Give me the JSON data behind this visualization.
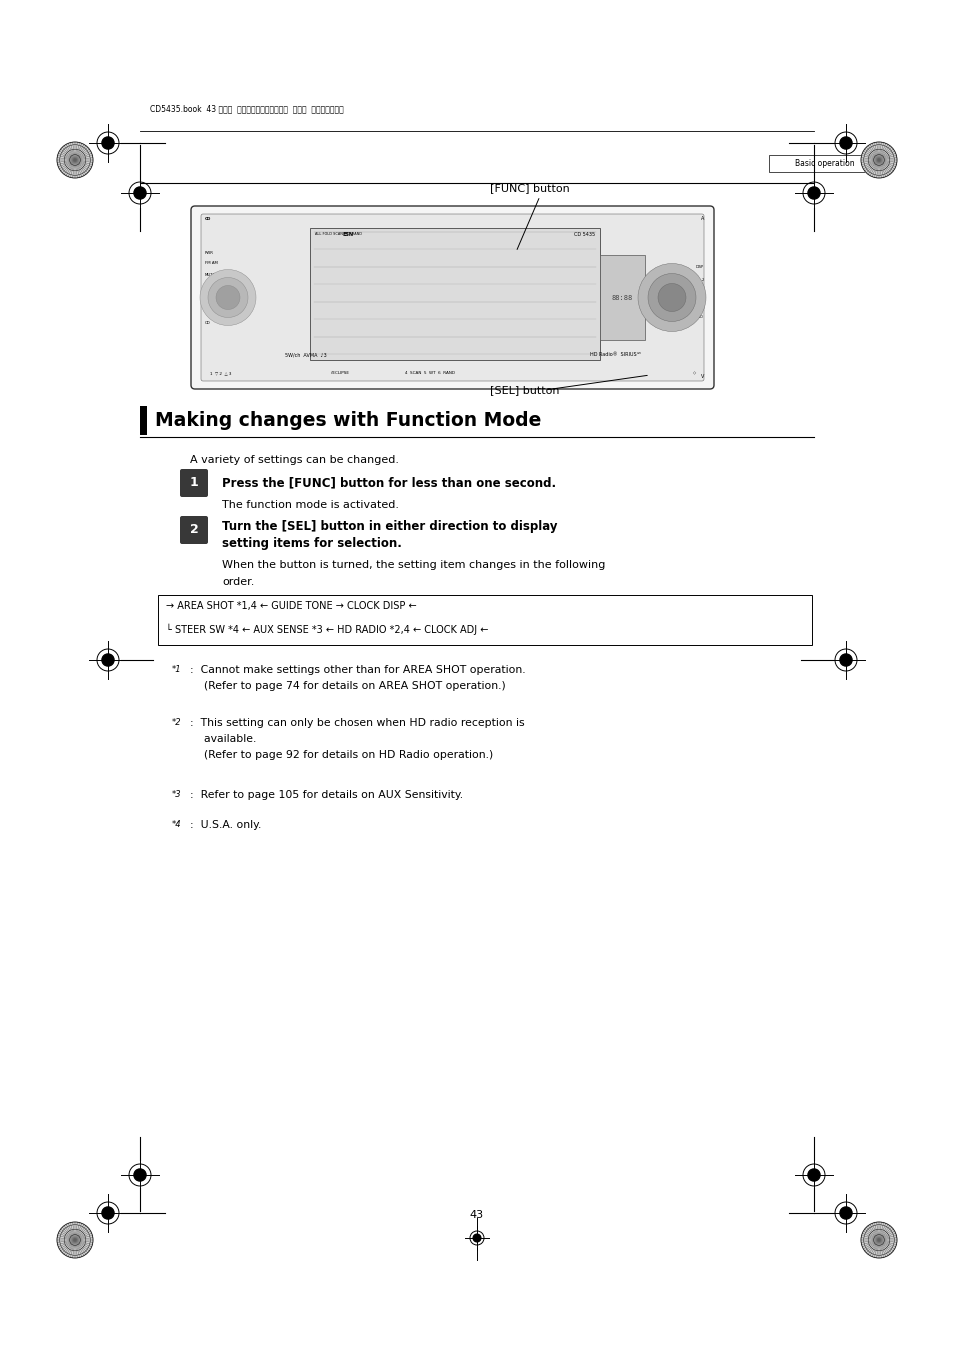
{
  "page_bg": "#ffffff",
  "page_width": 9.54,
  "page_height": 13.51,
  "dpi": 100,
  "header_text": "CD5435.book  43 ページ  ２００４年１２月１１日  土曜日  午後５時２９分",
  "tab_label": "Basic operation",
  "func_button_label": "[FUNC] button",
  "sel_button_label": "[SEL] button",
  "section_title": "Making changes with Function Mode",
  "intro_text": "A variety of settings can be changed.",
  "step1_bold": "Press the [FUNC] button for less than one second.",
  "step1_note": "The function mode is activated.",
  "step2_bold_line1": "Turn the [SEL] button in either direction to display",
  "step2_bold_line2": "setting items for selection.",
  "step2_note_line1": "When the button is turned, the setting item changes in the following",
  "step2_note_line2": "order.",
  "flow_line1": "→ AREA SHOT *1,4 ← GUIDE TONE → CLOCK DISP ←",
  "flow_line2": "└ STEER SW *4 ← AUX SENSE *3 ← HD RADIO *2,4 ← CLOCK ADJ ←",
  "note1_super": "*1",
  "note1_line1": ":  Cannot make settings other than for AREA SHOT operation.",
  "note1_line2": "    (Refer to page 74 for details on AREA SHOT operation.)",
  "note2_super": "*2",
  "note2_line1": ":  This setting can only be chosen when HD radio reception is",
  "note2_line2": "    available.",
  "note2_line3": "    (Refer to page 92 for details on HD Radio operation.)",
  "note3_super": "*3",
  "note3_line1": ":  Refer to page 105 for details on AUX Sensitivity.",
  "note4_super": "*4",
  "note4_line1": ":  U.S.A. only.",
  "page_number": "43"
}
